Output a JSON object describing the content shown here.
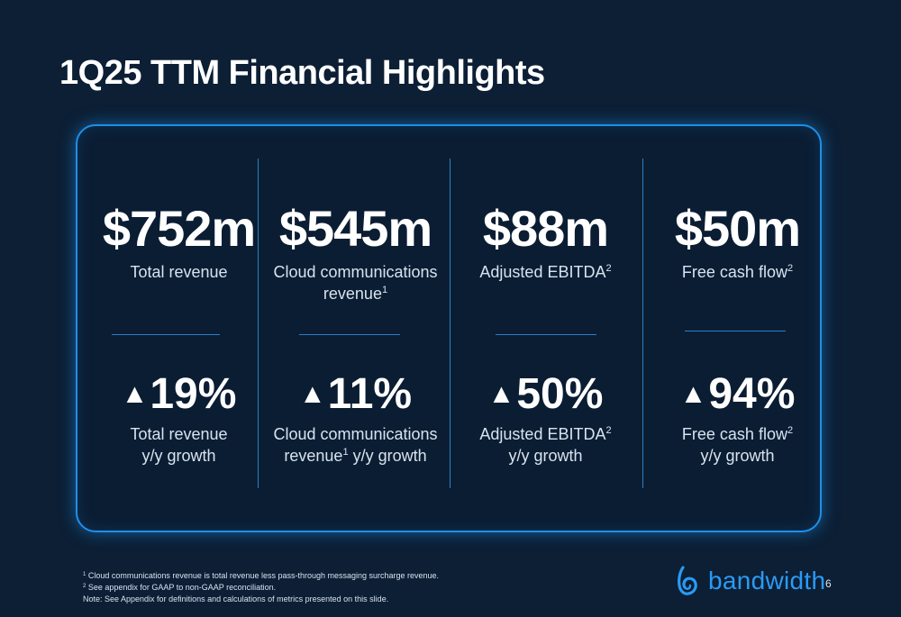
{
  "title": "1Q25 TTM Financial Highlights",
  "metrics": [
    {
      "value": "$752m",
      "label": "Total revenue",
      "label_sup": "",
      "label_line2": "",
      "growth": "19%",
      "growth_label_a": "Total revenue",
      "growth_label_a_sup": "",
      "growth_label_b": "y/y growth"
    },
    {
      "value": "$545m",
      "label": "Cloud communications",
      "label_sup": "",
      "label_line2": "revenue",
      "label_line2_sup": "1",
      "growth": "11%",
      "growth_label_a": "Cloud communications",
      "growth_label_a_sup": "",
      "growth_label_b_pre": "revenue",
      "growth_label_b_sup": "1",
      "growth_label_b": " y/y growth"
    },
    {
      "value": "$88m",
      "label": "Adjusted EBITDA",
      "label_sup": "2",
      "label_line2": "",
      "growth": "50%",
      "growth_label_a": "Adjusted EBITDA",
      "growth_label_a_sup": "2",
      "growth_label_b": "y/y growth"
    },
    {
      "value": "$50m",
      "label": "Free cash flow",
      "label_sup": "2",
      "label_line2": "",
      "growth": "94%",
      "growth_label_a": "Free cash flow",
      "growth_label_a_sup": "2",
      "growth_label_b": "y/y growth"
    }
  ],
  "growth_arrow": "▲",
  "footnotes": [
    {
      "sup": "1",
      "text": " Cloud communications revenue is total revenue less pass-through messaging surcharge revenue."
    },
    {
      "sup": "2",
      "text": " See appendix for GAAP to non-GAAP reconciliation."
    },
    {
      "sup": "",
      "text": "Note: See Appendix for definitions and calculations of metrics presented on this slide."
    }
  ],
  "logo_text": "bandwidth",
  "page_number": "6",
  "colors": {
    "background": "#0c1f35",
    "accent": "#1e8fe8",
    "logo": "#2b9af3"
  }
}
